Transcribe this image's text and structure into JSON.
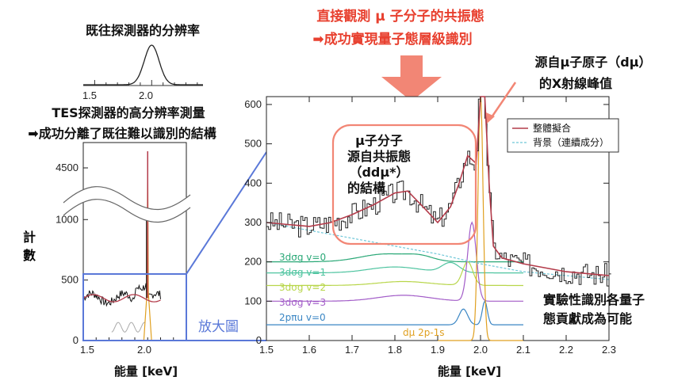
{
  "top_annotation": {
    "line1": "直接觀測 μ 子分子的共振態",
    "line2": "➡成功實現量子態層級識別",
    "color": "#e8402f"
  },
  "arrow_color": "#f28675",
  "muonic_atom_label": {
    "line1": "源自μ子原子（dμ）",
    "line2": "的X射線峰值"
  },
  "resonance_label": {
    "line1": "μ子分子",
    "line2": "源自共振態",
    "line3": "（ddμ*）",
    "line4": "的結構"
  },
  "conclusion_label": {
    "line1": "實驗性識別各量子",
    "line2": "態貢獻成為可能"
  },
  "zoom_label": {
    "text": "放大圖",
    "color": "#5a78d8"
  },
  "left_top_annotation": {
    "line1": "TES探測器的高分辨率測量",
    "line2": "➡成功分離了既往難以識別的結構"
  },
  "inset": {
    "title": "既往探測器的分辨率",
    "xticks": [
      "1.5",
      "2.0"
    ],
    "gaussian": {
      "center": 2.0,
      "sigma": 0.065
    }
  },
  "chart_data": [
    {
      "type": "line",
      "panel": "left-overview",
      "xlabel": "能量 [keV]",
      "ylabel": "計數",
      "xlim": [
        1.5,
        2.3
      ],
      "ylim_lower": [
        0,
        700
      ],
      "ylim_upper": [
        4000,
        5000
      ],
      "axis_break": true,
      "xticks": [
        "1.5",
        "2.0"
      ],
      "yticks": [
        "0",
        "500",
        "1000",
        "4500"
      ],
      "peak": {
        "x": 2.0,
        "y": 4800
      },
      "background_level": 350
    },
    {
      "type": "line",
      "panel": "right-zoom",
      "xlabel": "能量 [keV]",
      "xlim": [
        1.5,
        2.3
      ],
      "ylim": [
        0,
        620
      ],
      "xticks": [
        "1.5",
        "1.6",
        "1.7",
        "1.8",
        "1.9",
        "2.0",
        "2.1",
        "2.2",
        "2.3"
      ],
      "yticks": [
        "0",
        "100",
        "200",
        "300",
        "400",
        "500",
        "600"
      ],
      "legend": {
        "placement": "top-right",
        "entries": [
          "整體擬合",
          "背景（連續成分）"
        ]
      },
      "fit_points": [
        [
          1.5,
          300
        ],
        [
          1.55,
          295
        ],
        [
          1.6,
          290
        ],
        [
          1.65,
          300
        ],
        [
          1.7,
          320
        ],
        [
          1.75,
          345
        ],
        [
          1.8,
          375
        ],
        [
          1.83,
          380
        ],
        [
          1.87,
          335
        ],
        [
          1.9,
          300
        ],
        [
          1.93,
          340
        ],
        [
          1.95,
          400
        ],
        [
          1.97,
          470
        ],
        [
          1.99,
          450
        ],
        [
          2.0,
          640
        ],
        [
          2.01,
          640
        ],
        [
          2.02,
          400
        ],
        [
          2.03,
          240
        ],
        [
          2.05,
          210
        ],
        [
          2.1,
          195
        ],
        [
          2.15,
          185
        ],
        [
          2.2,
          175
        ],
        [
          2.3,
          165
        ]
      ],
      "background_points": [
        [
          1.5,
          300
        ],
        [
          1.6,
          280
        ],
        [
          1.7,
          260
        ],
        [
          1.8,
          240
        ],
        [
          1.9,
          220
        ],
        [
          2.0,
          195
        ],
        [
          2.1,
          175
        ],
        [
          2.2,
          165
        ],
        [
          2.3,
          155
        ]
      ],
      "components": [
        {
          "name": "3dσg v=0",
          "color": "#2aa877",
          "baseline": 200,
          "peaks": [
            [
              1.78,
              20,
              0.06
            ],
            [
              1.86,
              10,
              0.03
            ]
          ]
        },
        {
          "name": "3dσg v=1",
          "color": "#4fc4a0",
          "baseline": 172,
          "peaks": [
            [
              1.8,
              15,
              0.06
            ],
            [
              1.93,
              25,
              0.02
            ]
          ]
        },
        {
          "name": "3dσg v=2",
          "color": "#b8d64a",
          "baseline": 140,
          "peaks": [
            [
              1.82,
              10,
              0.06
            ],
            [
              1.97,
              60,
              0.012
            ]
          ]
        },
        {
          "name": "3dσg v=3",
          "color": "#a25cc8",
          "baseline": 100,
          "peaks": [
            [
              1.82,
              15,
              0.06
            ],
            [
              1.98,
              200,
              0.01
            ]
          ]
        },
        {
          "name": "2pπu v=0",
          "color": "#3a86c4",
          "baseline": 40,
          "peaks": [
            [
              1.96,
              40,
              0.01
            ],
            [
              2.01,
              60,
              0.006
            ]
          ]
        },
        {
          "name": "dμ 2p-1s",
          "color": "#e0a020",
          "baseline": 0,
          "peaks": [
            [
              2.0,
              620,
              0.006
            ]
          ]
        }
      ]
    }
  ]
}
